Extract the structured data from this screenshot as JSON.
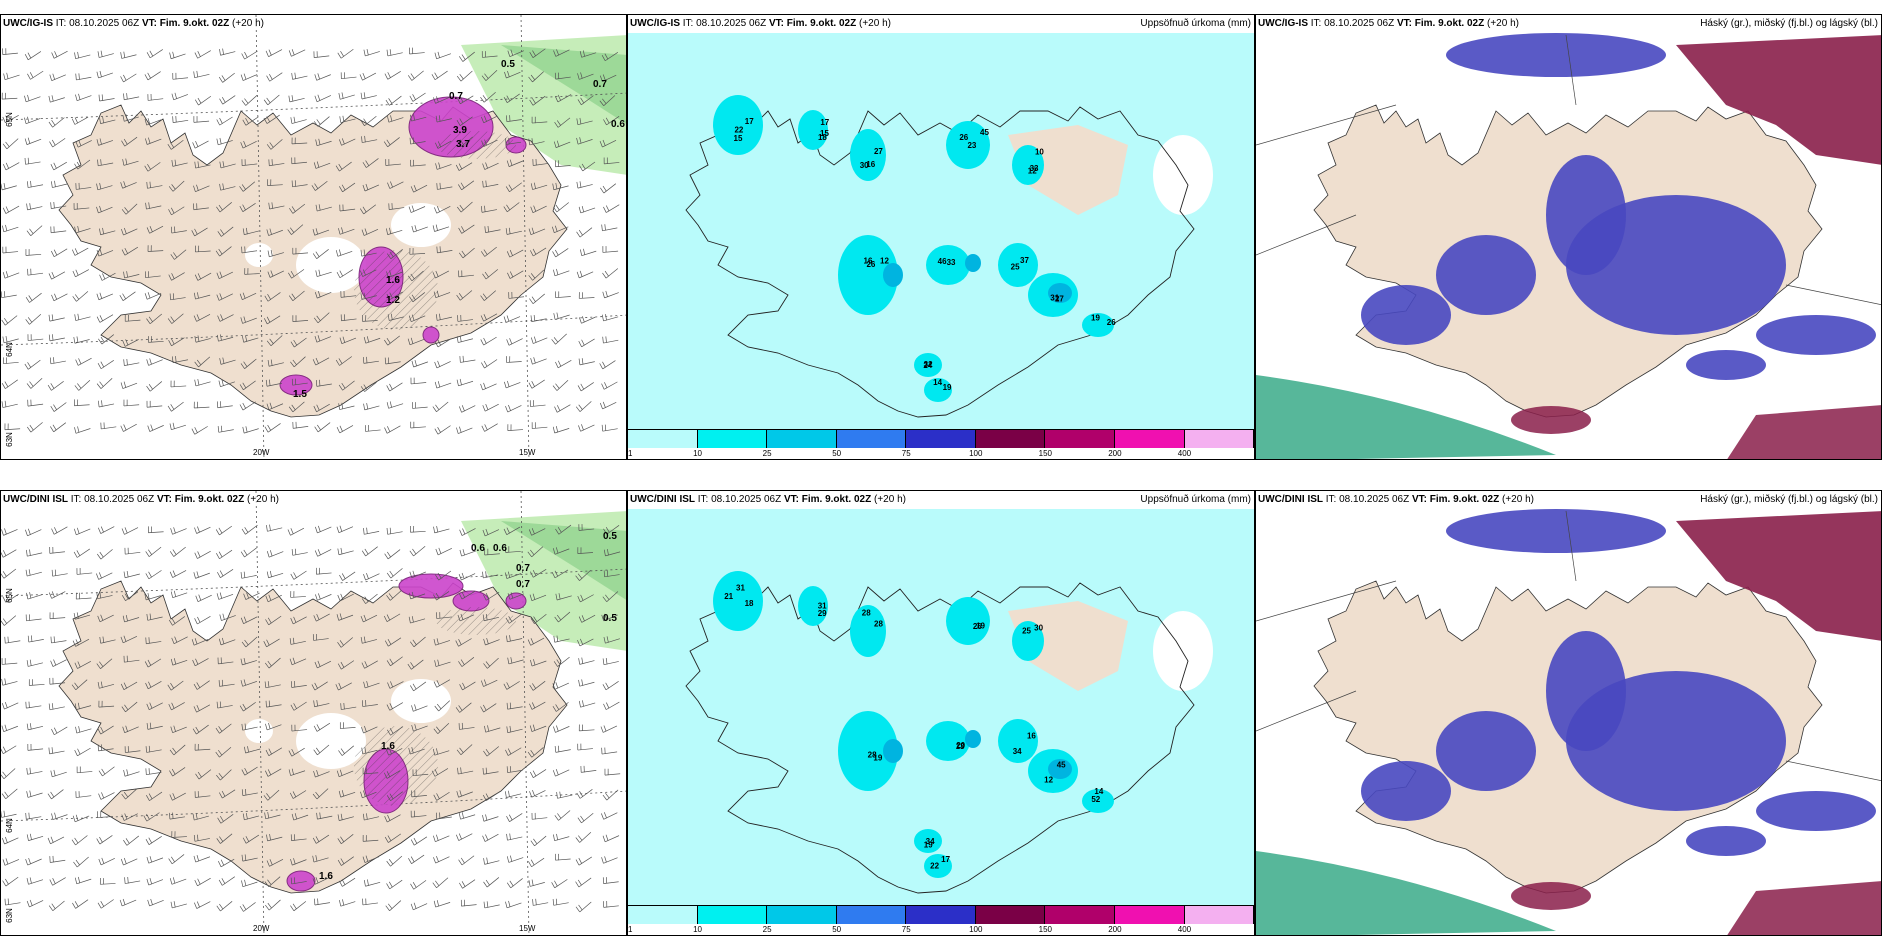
{
  "panels": [
    {
      "id": "top-left",
      "model": "UWC/IG-IS",
      "it_label": "IT:",
      "it_value": "08.10.2025 06Z",
      "vt_label": "VT: Fim. 9.okt. 02Z",
      "lead": "(+20 h)",
      "units": "",
      "labels": [
        "0.5",
        "0.7",
        "0.6",
        "0.7",
        "3.9",
        "3.7",
        "1.6",
        "1.2",
        "1.5"
      ]
    },
    {
      "id": "top-mid",
      "model": "UWC/IG-IS",
      "it_label": "IT:",
      "it_value": "08.10.2025 06Z",
      "vt_label": "VT: Fim. 9.okt. 02Z",
      "lead": "(+20 h)",
      "units": "Uppsöfnuð úrkoma (mm)",
      "labels": [
        "17",
        "18",
        "27",
        "23",
        "12",
        "16",
        "33",
        "25",
        "31",
        "26",
        "24",
        "14",
        "15",
        "17",
        "30",
        "45",
        "33",
        "26",
        "46",
        "37",
        "27",
        "19",
        "32",
        "19",
        "22",
        "15",
        "16",
        "26",
        "10",
        "12"
      ]
    },
    {
      "id": "top-right",
      "model": "UWC/IG-IS",
      "it_label": "IT:",
      "it_value": "08.10.2025 06Z",
      "vt_label": "VT: Fim. 9.okt. 02Z",
      "lead": "(+20 h)",
      "units": "Háský (gr.), miðský (fj.bl.) og lágský (bl.)",
      "labels": []
    },
    {
      "id": "bottom-left",
      "model": "UWC/DINI ISL",
      "it_label": "IT:",
      "it_value": "08.10.2025 06Z",
      "vt_label": "VT: Fim. 9.okt. 02Z",
      "lead": "(+20 h)",
      "units": "",
      "labels": [
        "0.5",
        "0.6",
        "0.7",
        "0.6",
        "0.7",
        "0.5",
        "1.6",
        "1.6"
      ]
    },
    {
      "id": "bottom-mid",
      "model": "UWC/DINI ISL",
      "it_label": "IT:",
      "it_value": "08.10.2025 06Z",
      "vt_label": "VT: Fim. 9.okt. 02Z",
      "lead": "(+20 h)",
      "units": "Uppsöfnuð úrkoma (mm)",
      "labels": [
        "31",
        "29",
        "28",
        "26",
        "25",
        "19",
        "20",
        "34",
        "45",
        "52",
        "34",
        "22",
        "21",
        "31",
        "28",
        "19",
        "30",
        "28",
        "13",
        "16",
        "12",
        "14",
        "19",
        "17",
        "18"
      ]
    },
    {
      "id": "bottom-right",
      "model": "UWC/DINI ISL",
      "it_label": "IT:",
      "it_value": "08.10.2025 06Z",
      "vt_label": "VT: Fim. 9.okt. 02Z",
      "lead": "(+20 h)",
      "units": "Háský (gr.), miðský (fj.bl.) og lágský (bl.)",
      "labels": []
    }
  ],
  "axis": {
    "lon1": "20W",
    "lon2": "15W",
    "lat1": "65N",
    "lat2": "64N",
    "lat3": "63N"
  },
  "colorbar": {
    "ticks": [
      "1",
      "10",
      "25",
      "50",
      "75",
      "100",
      "150",
      "200",
      "400"
    ],
    "colors": [
      "#b9fbfb",
      "#00f0f0",
      "#00c8e8",
      "#2f7bf0",
      "#2b2fc8",
      "#7a0046",
      "#b0006a",
      "#f010b0",
      "#f4b0f0"
    ]
  },
  "colors": {
    "land": "#efdfcf",
    "precip_light": "#b9fbfb",
    "precip_mid": "#00e8f0",
    "purple_precip": "#cc44cc",
    "green_precip": "#b8e8a8",
    "cloud_blue": "#4848c0",
    "cloud_red": "#8a1f4a",
    "cloud_green": "#3aaa88"
  }
}
